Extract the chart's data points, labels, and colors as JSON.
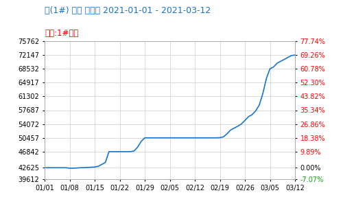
{
  "title1": "锑(1#) 华东 市场价 2021-01-01 - 2021-03-12",
  "title2": "品名:1#锑锭",
  "title1_color": "#1874CD",
  "title2_color": "#FF0000",
  "line_color": "#1874CD",
  "line_width": 1.2,
  "background_color": "#FFFFFF",
  "plot_bg_color": "#FFFFFF",
  "grid_color": "#CCCCCC",
  "left_yticks": [
    39612,
    42625,
    46842,
    50457,
    54072,
    57687,
    61302,
    64917,
    68532,
    72147,
    75762
  ],
  "right_yticks_labels": [
    "-7.07%",
    "0.00%",
    "9.89%",
    "18.38%",
    "26.86%",
    "35.34%",
    "43.82%",
    "52.30%",
    "60.78%",
    "69.26%",
    "77.74%"
  ],
  "right_ytick_colors": [
    "#00AA00",
    "#000000",
    "#FF0000",
    "#FF0000",
    "#FF0000",
    "#FF0000",
    "#FF0000",
    "#FF0000",
    "#FF0000",
    "#FF0000",
    "#FF0000"
  ],
  "xtick_labels": [
    "01/01",
    "01/08",
    "01/15",
    "01/22",
    "01/29",
    "02/05",
    "02/12",
    "02/19",
    "02/26",
    "03/05",
    "03/12"
  ],
  "xtick_positions": [
    0,
    7,
    14,
    21,
    28,
    35,
    42,
    49,
    56,
    63,
    70
  ],
  "data_x": [
    0,
    1,
    2,
    3,
    4,
    5,
    6,
    7,
    8,
    9,
    10,
    11,
    12,
    13,
    14,
    15,
    16,
    17,
    18,
    19,
    20,
    21,
    22,
    23,
    24,
    25,
    26,
    27,
    28,
    29,
    30,
    31,
    32,
    33,
    34,
    35,
    36,
    37,
    38,
    39,
    40,
    41,
    42,
    43,
    44,
    45,
    46,
    47,
    48,
    49,
    50,
    51,
    52,
    53,
    54,
    55,
    56,
    57,
    58,
    59,
    60,
    61,
    62,
    63,
    64,
    65,
    66,
    67,
    68,
    69,
    70
  ],
  "data_y": [
    42625,
    42625,
    42625,
    42625,
    42625,
    42625,
    42625,
    42500,
    42500,
    42550,
    42625,
    42650,
    42700,
    42750,
    42800,
    43000,
    43500,
    44000,
    46842,
    46842,
    46842,
    46842,
    46842,
    46842,
    46842,
    47000,
    48000,
    49500,
    50457,
    50457,
    50457,
    50457,
    50457,
    50457,
    50457,
    50457,
    50457,
    50457,
    50457,
    50457,
    50457,
    50457,
    50457,
    50457,
    50457,
    50457,
    50457,
    50457,
    50457,
    50500,
    50700,
    51500,
    52500,
    53000,
    53500,
    54072,
    55000,
    56000,
    56500,
    57500,
    59000,
    62000,
    66000,
    68532,
    69000,
    70000,
    70500,
    71000,
    71500,
    72000,
    72147
  ],
  "ylim_min": 39612,
  "ylim_max": 75762,
  "xlim_min": 0,
  "xlim_max": 70,
  "left_ytick_fontsize": 7,
  "right_ytick_fontsize": 7,
  "xtick_fontsize": 7,
  "title1_fontsize": 9,
  "title2_fontsize": 8.5
}
